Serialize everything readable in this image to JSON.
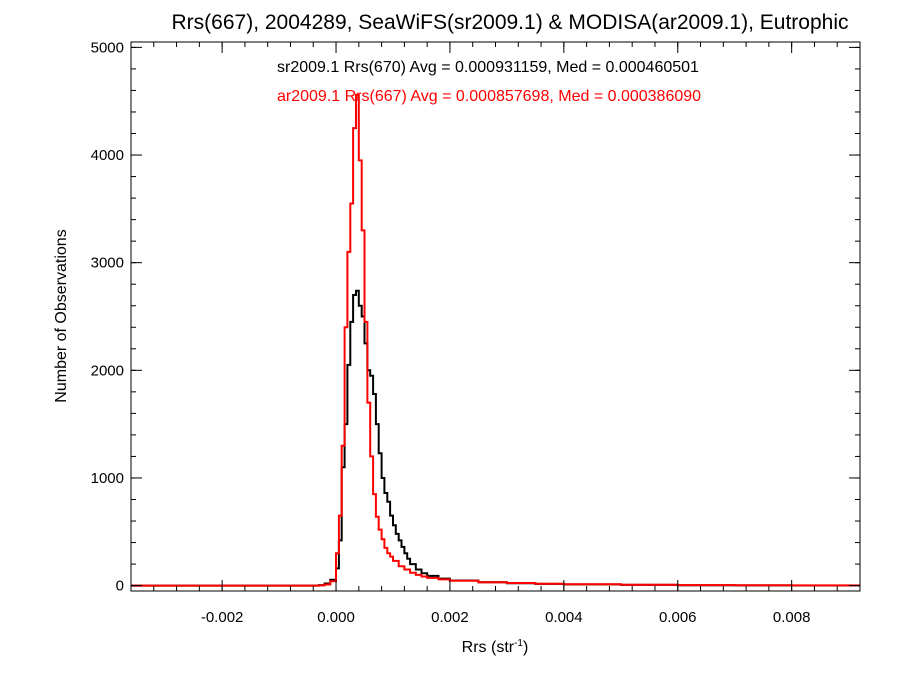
{
  "chart_data": {
    "type": "line",
    "title": "Rrs(667), 2004289, SeaWiFS(sr2009.1) & MODISA(ar2009.1), Eutrophic",
    "xlabel": "Rrs (str",
    "xlabel_superscript": "-1",
    "xlabel_suffix": ")",
    "ylabel": "Number of Observations",
    "xlim": [
      -0.0036,
      0.0092
    ],
    "ylim": [
      -50,
      5050
    ],
    "x_ticks": [
      -0.002,
      0.0,
      0.002,
      0.004,
      0.006,
      0.008
    ],
    "x_tick_labels": [
      "-0.002",
      "0.000",
      "0.002",
      "0.004",
      "0.006",
      "0.008"
    ],
    "y_ticks": [
      0,
      1000,
      2000,
      3000,
      4000,
      5000
    ],
    "y_tick_labels": [
      "0",
      "1000",
      "2000",
      "3000",
      "4000",
      "5000"
    ],
    "grid": false,
    "series": [
      {
        "name": "sr2009.1 Rrs(670) Avg = 0.000931159, Med = 0.000460501",
        "color": "#000000",
        "step": "histogram",
        "points": [
          [
            -0.0036,
            0
          ],
          [
            -0.0004,
            0
          ],
          [
            -0.0003,
            5
          ],
          [
            -0.0002,
            20
          ],
          [
            -0.0001,
            55
          ],
          [
            0.0,
            160
          ],
          [
            5e-05,
            420
          ],
          [
            0.0001,
            1100
          ],
          [
            0.00015,
            1500
          ],
          [
            0.0002,
            2050
          ],
          [
            0.00025,
            2450
          ],
          [
            0.0003,
            2700
          ],
          [
            0.00035,
            2740
          ],
          [
            0.0004,
            2600
          ],
          [
            0.00045,
            2500
          ],
          [
            0.0005,
            2250
          ],
          [
            0.00055,
            2000
          ],
          [
            0.0006,
            1950
          ],
          [
            0.00065,
            1780
          ],
          [
            0.0007,
            1500
          ],
          [
            0.00075,
            1230
          ],
          [
            0.0008,
            1000
          ],
          [
            0.00085,
            860
          ],
          [
            0.0009,
            780
          ],
          [
            0.00095,
            650
          ],
          [
            0.001,
            560
          ],
          [
            0.00105,
            480
          ],
          [
            0.0011,
            420
          ],
          [
            0.00115,
            360
          ],
          [
            0.0012,
            300
          ],
          [
            0.00125,
            250
          ],
          [
            0.0013,
            200
          ],
          [
            0.0014,
            150
          ],
          [
            0.0015,
            115
          ],
          [
            0.0016,
            90
          ],
          [
            0.0018,
            65
          ],
          [
            0.002,
            48
          ],
          [
            0.0025,
            32
          ],
          [
            0.003,
            22
          ],
          [
            0.0035,
            16
          ],
          [
            0.004,
            11
          ],
          [
            0.005,
            7
          ],
          [
            0.006,
            4
          ],
          [
            0.007,
            2
          ],
          [
            0.008,
            1
          ],
          [
            0.0092,
            0
          ]
        ]
      },
      {
        "name": "ar2009.1 Rrs(667) Avg = 0.000857698, Med = 0.000386090",
        "color": "#ff0000",
        "step": "histogram",
        "points": [
          [
            -0.0036,
            0
          ],
          [
            -0.0004,
            0
          ],
          [
            -0.0003,
            2
          ],
          [
            -0.0002,
            10
          ],
          [
            -0.0001,
            40
          ],
          [
            0.0,
            300
          ],
          [
            5e-05,
            650
          ],
          [
            0.0001,
            1300
          ],
          [
            0.00015,
            2400
          ],
          [
            0.0002,
            3100
          ],
          [
            0.00025,
            3550
          ],
          [
            0.0003,
            4250
          ],
          [
            0.00035,
            4560
          ],
          [
            0.0004,
            3950
          ],
          [
            0.00045,
            3300
          ],
          [
            0.0005,
            2450
          ],
          [
            0.00055,
            1700
          ],
          [
            0.0006,
            1200
          ],
          [
            0.00065,
            850
          ],
          [
            0.0007,
            640
          ],
          [
            0.00075,
            520
          ],
          [
            0.0008,
            430
          ],
          [
            0.00085,
            350
          ],
          [
            0.0009,
            300
          ],
          [
            0.00095,
            270
          ],
          [
            0.001,
            230
          ],
          [
            0.0011,
            180
          ],
          [
            0.0012,
            150
          ],
          [
            0.0013,
            120
          ],
          [
            0.0014,
            100
          ],
          [
            0.0015,
            85
          ],
          [
            0.0016,
            72
          ],
          [
            0.0018,
            58
          ],
          [
            0.002,
            45
          ],
          [
            0.0025,
            32
          ],
          [
            0.003,
            24
          ],
          [
            0.0035,
            18
          ],
          [
            0.004,
            13
          ],
          [
            0.005,
            8
          ],
          [
            0.006,
            5
          ],
          [
            0.007,
            3
          ],
          [
            0.008,
            2
          ],
          [
            0.0092,
            0
          ]
        ]
      }
    ]
  }
}
